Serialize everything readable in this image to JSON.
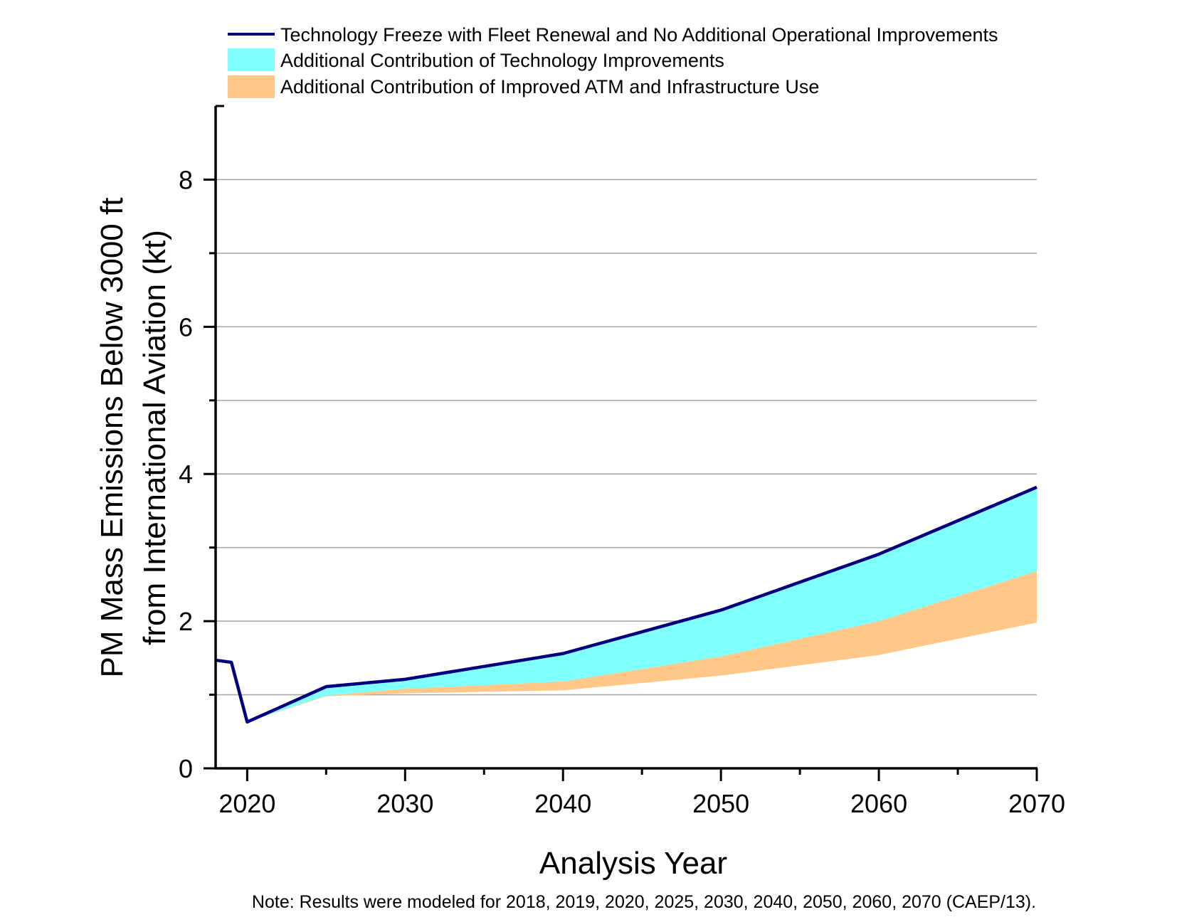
{
  "chart_data": {
    "type": "area",
    "title": "",
    "xlabel": "Analysis Year",
    "ylabel_lines": [
      "PM Mass Emissions Below 3000 ft",
      "from International Aviation (kt)"
    ],
    "ylabel": "PM Mass Emissions Below 3000 ft from International Aviation (kt)",
    "xlim": [
      2018,
      2070
    ],
    "ylim": [
      0,
      9
    ],
    "x_ticks": [
      2020,
      2030,
      2040,
      2050,
      2060,
      2070
    ],
    "x_tick_labels": [
      "2020",
      "2030",
      "2040",
      "2050",
      "2060",
      "2070"
    ],
    "x_minor_ticks": [
      2025,
      2035,
      2045,
      2055,
      2065
    ],
    "y_ticks": [
      0,
      2,
      4,
      6,
      8
    ],
    "y_tick_labels": [
      "0",
      "2",
      "4",
      "6",
      "8"
    ],
    "y_minor_ticks": [
      1,
      3,
      5,
      7
    ],
    "grid": true,
    "gridlines_y": [
      1,
      2,
      3,
      4,
      5,
      6,
      7,
      8
    ],
    "legend_position": "top",
    "x": [
      2018,
      2019,
      2020,
      2025,
      2030,
      2040,
      2050,
      2060,
      2070
    ],
    "series": [
      {
        "name": "Technology Freeze with Fleet Renewal and No Additional Operational Improvements",
        "kind": "line",
        "color": "#000080",
        "values": [
          1.47,
          1.44,
          0.63,
          1.11,
          1.21,
          1.56,
          2.15,
          2.91,
          3.82
        ]
      },
      {
        "name": "Additional Contribution of Technology Improvements",
        "kind": "band",
        "color": "#80FFFF",
        "upper": [
          null,
          null,
          0.63,
          1.11,
          1.21,
          1.56,
          2.15,
          2.91,
          3.82
        ],
        "lower": [
          null,
          null,
          0.63,
          0.99,
          1.08,
          1.18,
          1.52,
          2.0,
          2.68
        ]
      },
      {
        "name": "Additional Contribution of Improved ATM and Infrastructure Use",
        "kind": "band",
        "color": "#FFC888",
        "upper": [
          null,
          null,
          0.63,
          0.99,
          1.08,
          1.18,
          1.52,
          2.0,
          2.68
        ],
        "lower": [
          null,
          null,
          0.63,
          0.98,
          1.02,
          1.06,
          1.26,
          1.54,
          1.98
        ]
      }
    ],
    "legend": [
      {
        "label": "Technology Freeze with Fleet Renewal and No Additional Operational Improvements",
        "swatch": "line",
        "color": "#000080"
      },
      {
        "label": "Additional Contribution of Technology Improvements",
        "swatch": "box",
        "color": "#80FFFF"
      },
      {
        "label": "Additional Contribution of Improved ATM and Infrastructure Use",
        "swatch": "box",
        "color": "#FFC888"
      }
    ],
    "note": "Note: Results were modeled for 2018, 2019, 2020, 2025, 2030, 2040, 2050, 2060, 2070 (CAEP/13)."
  }
}
